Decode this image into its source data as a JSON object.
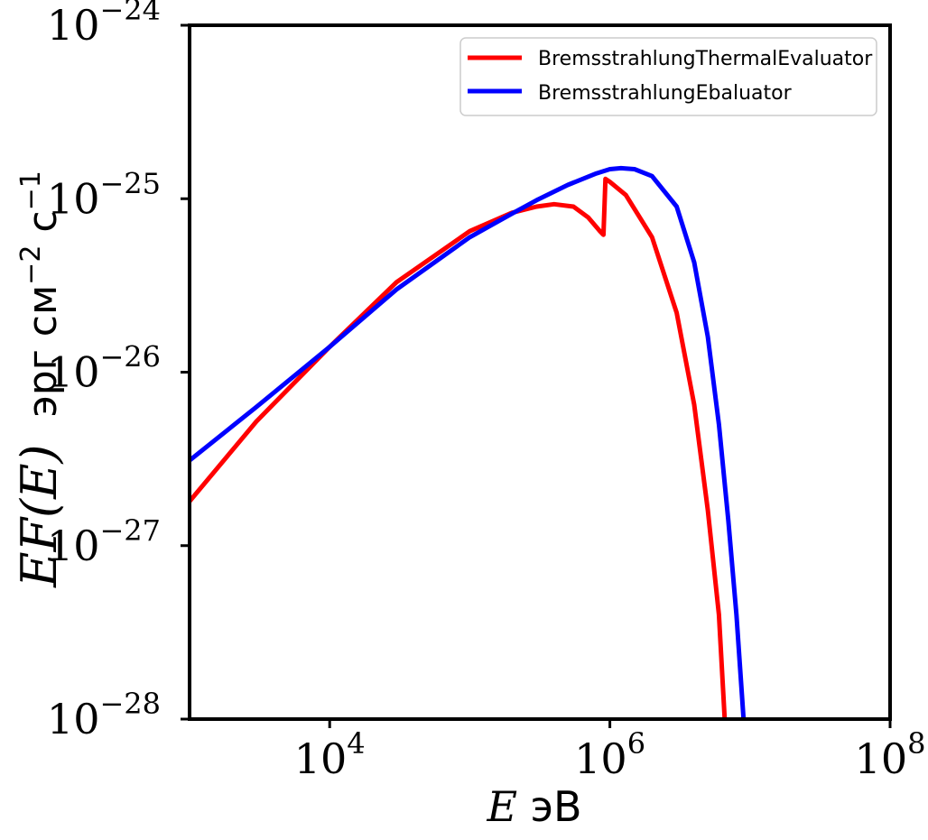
{
  "chart_data": {
    "type": "line",
    "xscale": "log",
    "yscale": "log",
    "xlim": [
      1000,
      100000000
    ],
    "ylim": [
      1e-28,
      1e-24
    ],
    "x_ticks": [
      {
        "value": 10000,
        "base": "10",
        "exp": "4"
      },
      {
        "value": 1000000,
        "base": "10",
        "exp": "6"
      },
      {
        "value": 100000000,
        "base": "10",
        "exp": "8"
      }
    ],
    "y_ticks": [
      {
        "value": 1e-28,
        "base": "10",
        "exp": "−28"
      },
      {
        "value": 1e-27,
        "base": "10",
        "exp": "−27"
      },
      {
        "value": 1e-26,
        "base": "10",
        "exp": "−26"
      },
      {
        "value": 1e-25,
        "base": "10",
        "exp": "−25"
      },
      {
        "value": 1e-24,
        "base": "10",
        "exp": "−24"
      }
    ],
    "xlabel": {
      "math": "E",
      "text": " эВ"
    },
    "ylabel": {
      "math": "EF(E)",
      "text": "эрг см",
      "sup1": "−2",
      "mid": " с",
      "sup2": "−1"
    },
    "legend_position": "top-right",
    "grid": false,
    "series": [
      {
        "name": "BremsstrahlungThermalEvaluator",
        "color": "#ff0000",
        "points": [
          [
            1000,
            1.8e-27
          ],
          [
            3000,
            5.2e-27
          ],
          [
            10000,
            1.4e-26
          ],
          [
            30000,
            3.3e-26
          ],
          [
            100000,
            6.5e-26
          ],
          [
            200000,
            8.3e-26
          ],
          [
            300000,
            9e-26
          ],
          [
            400000,
            9.3e-26
          ],
          [
            550000,
            9e-26
          ],
          [
            700000,
            7.8e-26
          ],
          [
            850000,
            6.5e-26
          ],
          [
            900000,
            6.2e-26
          ],
          [
            930000,
            1.3e-25
          ],
          [
            1000000,
            1.25e-25
          ],
          [
            1300000,
            1.05e-25
          ],
          [
            2000000,
            6e-26
          ],
          [
            3000000,
            2.2e-26
          ],
          [
            4000000,
            6.5e-27
          ],
          [
            5000000,
            1.6e-27
          ],
          [
            6000000,
            4e-28
          ],
          [
            6600000,
            1e-28
          ]
        ]
      },
      {
        "name": "BremsstrahlungEbaluator",
        "color": "#0000ff",
        "points": [
          [
            1000,
            3.1e-27
          ],
          [
            3000,
            6.3e-27
          ],
          [
            10000,
            1.4e-26
          ],
          [
            30000,
            3e-26
          ],
          [
            100000,
            6e-26
          ],
          [
            200000,
            8.2e-26
          ],
          [
            300000,
            9.8e-26
          ],
          [
            500000,
            1.2e-25
          ],
          [
            800000,
            1.4e-25
          ],
          [
            1000000,
            1.48e-25
          ],
          [
            1200000,
            1.5e-25
          ],
          [
            1500000,
            1.48e-25
          ],
          [
            2000000,
            1.35e-25
          ],
          [
            3000000,
            9e-26
          ],
          [
            4000000,
            4.3e-26
          ],
          [
            5000000,
            1.6e-26
          ],
          [
            6000000,
            5e-27
          ],
          [
            7000000,
            1.4e-27
          ],
          [
            8000000,
            4e-28
          ],
          [
            9000000,
            1e-28
          ]
        ]
      }
    ]
  }
}
